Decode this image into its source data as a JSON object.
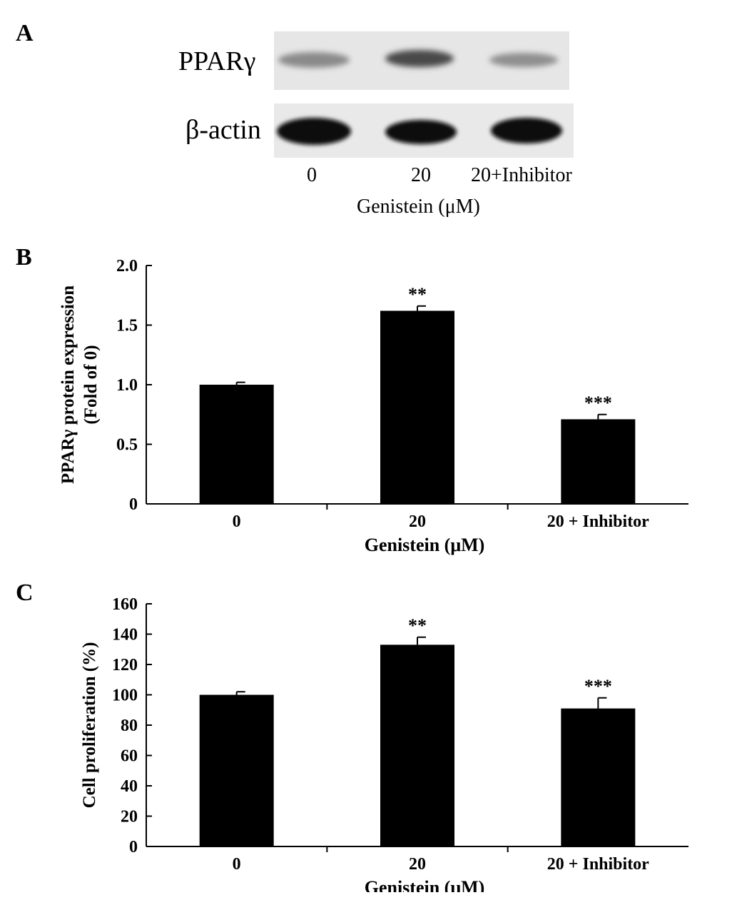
{
  "panels": {
    "a": "A",
    "b": "B",
    "c": "C"
  },
  "blot": {
    "rows": [
      "PPARγ",
      "β-actin"
    ],
    "lanes": [
      "0",
      "20",
      "20+Inhibitor"
    ],
    "xlabel": "Genistein (μM)"
  },
  "chart_data": [
    {
      "type": "bar",
      "panel": "B",
      "categories": [
        "0",
        "20",
        "20 + Inhibitor"
      ],
      "values": [
        1.0,
        1.62,
        0.71
      ],
      "errors": [
        0.02,
        0.04,
        0.04
      ],
      "annotations": [
        "",
        "**",
        "***"
      ],
      "title": "",
      "xlabel": "Genistein (μM)",
      "ylabel": [
        "PPARγ protein expression",
        "(Fold of 0)"
      ],
      "ylim": [
        0,
        2.0
      ],
      "yticks": [
        "0",
        "0.5",
        "1.0",
        "1.5",
        "2.0"
      ],
      "ytick_values": [
        0,
        0.5,
        1.0,
        1.5,
        2.0
      ],
      "bar_color": "#000000"
    },
    {
      "type": "bar",
      "panel": "C",
      "categories": [
        "0",
        "20",
        "20 + Inhibitor"
      ],
      "values": [
        100,
        133,
        91
      ],
      "errors": [
        2,
        5,
        7
      ],
      "annotations": [
        "",
        "**",
        "***"
      ],
      "title": "",
      "xlabel": "Genistein (μM)",
      "ylabel": [
        "Cell proliferation (%)"
      ],
      "ylim": [
        0,
        160
      ],
      "yticks": [
        "0",
        "20",
        "40",
        "60",
        "80",
        "100",
        "120",
        "140",
        "160"
      ],
      "ytick_values": [
        0,
        20,
        40,
        60,
        80,
        100,
        120,
        140,
        160
      ],
      "bar_color": "#000000"
    }
  ]
}
